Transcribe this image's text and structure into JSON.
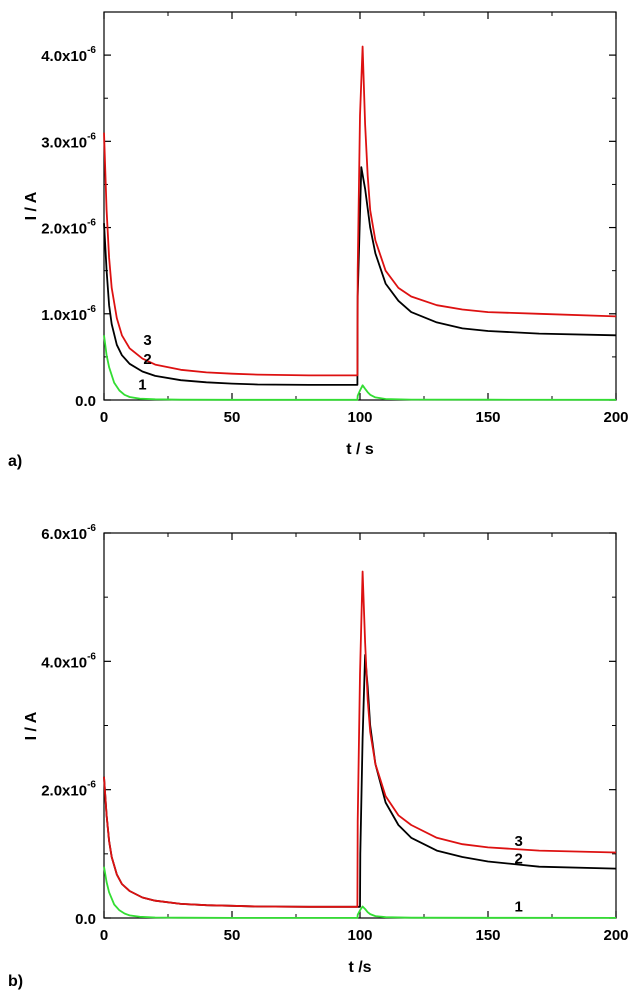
{
  "chart_data": [
    {
      "panel_label": "a)",
      "type": "line",
      "xlabel": "t / s",
      "ylabel": "I / A",
      "xlim": [
        0,
        200
      ],
      "ylim": [
        0,
        4.5e-06
      ],
      "xticks": [
        0,
        50,
        100,
        150,
        200
      ],
      "xtick_labels": [
        "0",
        "50",
        "100",
        "150",
        "200"
      ],
      "yticks": [
        0,
        1e-06,
        2e-06,
        3e-06,
        4e-06
      ],
      "ytick_labels": [
        {
          "mantissa": "0.0",
          "exponent": ""
        },
        {
          "mantissa": "1.0x10",
          "exponent": "-6"
        },
        {
          "mantissa": "2.0x10",
          "exponent": "-6"
        },
        {
          "mantissa": "3.0x10",
          "exponent": "-6"
        },
        {
          "mantissa": "4.0x10",
          "exponent": "-6"
        }
      ],
      "series": [
        {
          "label": "1",
          "color": "#33dd33",
          "label_x": 15,
          "label_y": 1.2e-07,
          "t": [
            0,
            1,
            2,
            4,
            6,
            8,
            10,
            14,
            20,
            30,
            50,
            70,
            99,
            99.1,
            100,
            101,
            102,
            103,
            104,
            106,
            110,
            120,
            150,
            200
          ],
          "I": [
            7.5e-07,
            5.2e-07,
            3.8e-07,
            2e-07,
            1.1e-07,
            6e-08,
            3.5e-08,
            1.5e-08,
            8e-09,
            4e-09,
            2e-09,
            2e-09,
            2e-09,
            5e-08,
            1.1e-07,
            1.7e-07,
            1.3e-07,
            9e-08,
            6e-08,
            3e-08,
            1.2e-08,
            5e-09,
            3e-09,
            2e-09
          ]
        },
        {
          "label": "2",
          "color": "#000000",
          "label_x": 17,
          "label_y": 4.2e-07,
          "t": [
            0,
            1,
            2,
            3,
            5,
            7,
            10,
            15,
            20,
            30,
            40,
            50,
            60,
            80,
            99,
            99.1,
            100.5,
            102,
            104,
            106,
            110,
            115,
            120,
            130,
            140,
            150,
            170,
            200
          ],
          "I": [
            2.05e-06,
            1.5e-06,
            1.1e-06,
            8.8e-07,
            6.4e-07,
            5.2e-07,
            4.2e-07,
            3.3e-07,
            2.8e-07,
            2.3e-07,
            2.05e-07,
            1.9e-07,
            1.8e-07,
            1.75e-07,
            1.75e-07,
            1.2e-06,
            2.7e-06,
            2.45e-06,
            2e-06,
            1.7e-06,
            1.35e-06,
            1.15e-06,
            1.02e-06,
            9e-07,
            8.3e-07,
            8e-07,
            7.7e-07,
            7.5e-07
          ]
        },
        {
          "label": "3",
          "color": "#dd1111",
          "label_x": 17,
          "label_y": 6.4e-07,
          "t": [
            0,
            1,
            2,
            3,
            5,
            7,
            10,
            15,
            20,
            30,
            40,
            50,
            60,
            80,
            99,
            99.1,
            100,
            101,
            102,
            103,
            104,
            106,
            110,
            115,
            120,
            130,
            140,
            150,
            170,
            200
          ],
          "I": [
            3.1e-06,
            2.2e-06,
            1.65e-06,
            1.3e-06,
            9.5e-07,
            7.5e-07,
            6e-07,
            4.8e-07,
            4.1e-07,
            3.5e-07,
            3.2e-07,
            3.05e-07,
            2.95e-07,
            2.85e-07,
            2.85e-07,
            1.5e-06,
            3.3e-06,
            4.1e-06,
            3.2e-06,
            2.6e-06,
            2.2e-06,
            1.85e-06,
            1.5e-06,
            1.3e-06,
            1.2e-06,
            1.1e-06,
            1.05e-06,
            1.02e-06,
            1e-06,
            9.7e-07
          ]
        }
      ]
    },
    {
      "panel_label": "b)",
      "type": "line",
      "xlabel": "t /s",
      "ylabel": "I / A",
      "xlim": [
        0,
        200
      ],
      "ylim": [
        0,
        6e-06
      ],
      "xticks": [
        0,
        50,
        100,
        150,
        200
      ],
      "xtick_labels": [
        "0",
        "50",
        "100",
        "150",
        "200"
      ],
      "yticks": [
        0,
        2e-06,
        4e-06,
        6e-06
      ],
      "ytick_labels": [
        {
          "mantissa": "0.0",
          "exponent": ""
        },
        {
          "mantissa": "2.0x10",
          "exponent": "-6"
        },
        {
          "mantissa": "4.0x10",
          "exponent": "-6"
        },
        {
          "mantissa": "6.0x10",
          "exponent": "-6"
        }
      ],
      "series": [
        {
          "label": "1",
          "color": "#33dd33",
          "label_x": 162,
          "label_y": 1e-07,
          "t": [
            0,
            1,
            2,
            4,
            6,
            8,
            10,
            14,
            20,
            30,
            50,
            70,
            99,
            99.1,
            100,
            101,
            102,
            103,
            104,
            106,
            110,
            120,
            150,
            200
          ],
          "I": [
            8e-07,
            5.6e-07,
            4e-07,
            2.1e-07,
            1.2e-07,
            7e-08,
            4e-08,
            1.8e-08,
            8e-09,
            4e-09,
            2e-09,
            2e-09,
            2e-09,
            5e-08,
            1.2e-07,
            1.8e-07,
            1.4e-07,
            9e-08,
            6e-08,
            3e-08,
            1.2e-08,
            5e-09,
            3e-09,
            2e-09
          ]
        },
        {
          "label": "2",
          "color": "#000000",
          "label_x": 162,
          "label_y": 8.5e-07,
          "t": [
            0,
            1,
            2,
            3,
            5,
            7,
            10,
            15,
            20,
            30,
            40,
            50,
            60,
            80,
            100,
            100.1,
            101,
            102,
            103,
            104,
            106,
            110,
            115,
            120,
            130,
            140,
            150,
            170,
            200
          ],
          "I": [
            2.2e-06,
            1.6e-06,
            1.2e-06,
            9.5e-07,
            6.8e-07,
            5.3e-07,
            4.2e-07,
            3.2e-07,
            2.7e-07,
            2.2e-07,
            2e-07,
            1.9e-07,
            1.8e-07,
            1.75e-07,
            1.75e-07,
            1e-06,
            2.8e-06,
            4.1e-06,
            3.6e-06,
            3e-06,
            2.4e-06,
            1.8e-06,
            1.45e-06,
            1.25e-06,
            1.05e-06,
            9.5e-07,
            8.8e-07,
            8e-07,
            7.7e-07
          ]
        },
        {
          "label": "3",
          "color": "#dd1111",
          "label_x": 162,
          "label_y": 1.12e-06,
          "t": [
            0,
            1,
            2,
            3,
            5,
            7,
            10,
            15,
            20,
            30,
            40,
            50,
            60,
            80,
            99,
            99.1,
            100,
            101,
            102,
            103,
            104,
            106,
            110,
            115,
            120,
            130,
            140,
            150,
            170,
            200
          ],
          "I": [
            2.2e-06,
            1.6e-06,
            1.2e-06,
            9.5e-07,
            6.8e-07,
            5.3e-07,
            4.2e-07,
            3.2e-07,
            2.7e-07,
            2.2e-07,
            2e-07,
            1.9e-07,
            1.8e-07,
            1.75e-07,
            1.75e-07,
            1.5e-06,
            3.8e-06,
            5.4e-06,
            4.3e-06,
            3.4e-06,
            2.9e-06,
            2.4e-06,
            1.9e-06,
            1.6e-06,
            1.45e-06,
            1.25e-06,
            1.15e-06,
            1.1e-06,
            1.05e-06,
            1.02e-06
          ]
        }
      ]
    }
  ]
}
